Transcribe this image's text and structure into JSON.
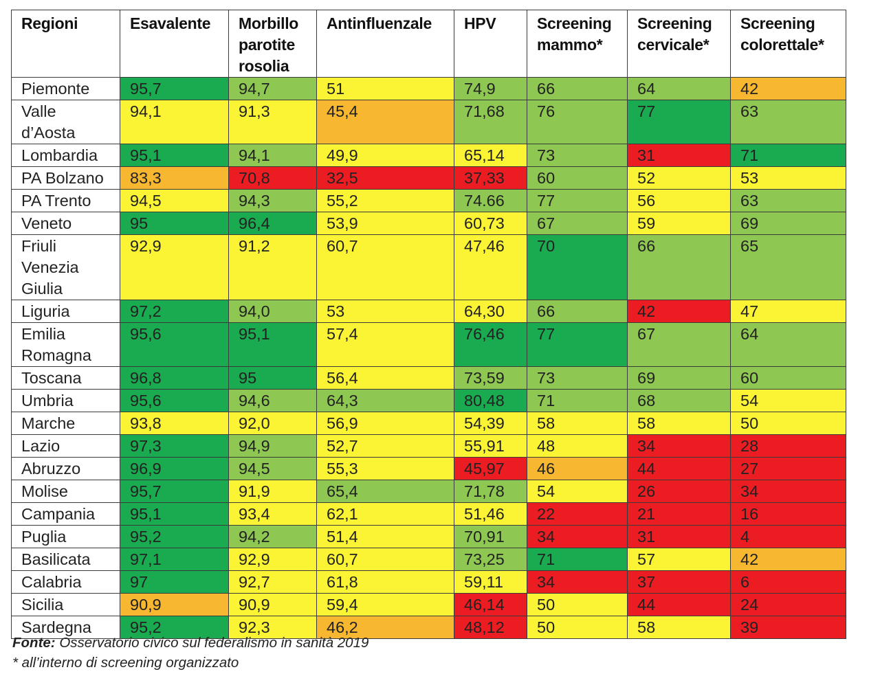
{
  "table": {
    "headers": [
      "Regioni",
      "Esavalente",
      "Morbillo parotite rosolia",
      "Antinfluenzale",
      "HPV",
      "Screening mammo*",
      "Screening cervicale*",
      "Screening colorettale*"
    ],
    "rows": [
      {
        "region": "Piemonte",
        "values": [
          "95,7",
          "94,7",
          "51",
          "74,9",
          "66",
          "64",
          "42"
        ],
        "colors": [
          "g",
          "l",
          "y",
          "l",
          "l",
          "l",
          "o"
        ]
      },
      {
        "region": "Valle d’Aosta",
        "values": [
          "94,1",
          "91,3",
          "45,4",
          "71,68",
          "76",
          "77",
          "63"
        ],
        "colors": [
          "y",
          "y",
          "o",
          "l",
          "l",
          "g",
          "l"
        ]
      },
      {
        "region": "Lombardia",
        "values": [
          "95,1",
          "94,1",
          "49,9",
          "65,14",
          "73",
          "31",
          "71"
        ],
        "colors": [
          "g",
          "l",
          "y",
          "y",
          "l",
          "r",
          "g"
        ]
      },
      {
        "region": "PA Bolzano",
        "values": [
          "83,3",
          "70,8",
          "32,5",
          "37,33",
          "60",
          "52",
          "53"
        ],
        "colors": [
          "o",
          "r",
          "r",
          "r",
          "l",
          "y",
          "y"
        ]
      },
      {
        "region": "PA Trento",
        "values": [
          "94,5",
          "94,3",
          "55,2",
          "74.66",
          "77",
          "56",
          "63"
        ],
        "colors": [
          "y",
          "l",
          "y",
          "l",
          "l",
          "y",
          "l"
        ]
      },
      {
        "region": "Veneto",
        "values": [
          "95",
          "96,4",
          "53,9",
          "60,73",
          "67",
          "59",
          "69"
        ],
        "colors": [
          "g",
          "g",
          "y",
          "y",
          "l",
          "y",
          "l"
        ]
      },
      {
        "region": "Friuli Venezia Giulia",
        "values": [
          "92,9",
          "91,2",
          "60,7",
          "47,46",
          "70",
          "66",
          "65"
        ],
        "colors": [
          "y",
          "y",
          "y",
          "y",
          "g",
          "l",
          "l"
        ]
      },
      {
        "region": "Liguria",
        "values": [
          "97,2",
          "94,0",
          "53",
          "64,30",
          "66",
          "42",
          "47"
        ],
        "colors": [
          "g",
          "l",
          "y",
          "y",
          "l",
          "r",
          "y"
        ]
      },
      {
        "region": "Emilia Romagna",
        "values": [
          "95,6",
          "95,1",
          "57,4",
          "76,46",
          "77",
          "67",
          "64"
        ],
        "colors": [
          "g",
          "g",
          "y",
          "g",
          "g",
          "l",
          "l"
        ]
      },
      {
        "region": "Toscana",
        "values": [
          "96,8",
          "95",
          "56,4",
          "73,59",
          "73",
          "69",
          "60"
        ],
        "colors": [
          "g",
          "g",
          "y",
          "l",
          "l",
          "l",
          "l"
        ]
      },
      {
        "region": "Umbria",
        "values": [
          "95,6",
          "94,6",
          "64,3",
          "80,48",
          "71",
          "68",
          "54"
        ],
        "colors": [
          "g",
          "l",
          "l",
          "g",
          "l",
          "l",
          "y"
        ]
      },
      {
        "region": "Marche",
        "values": [
          "93,8",
          "92,0",
          "56,9",
          "54,39",
          "58",
          "58",
          "50"
        ],
        "colors": [
          "y",
          "y",
          "y",
          "y",
          "y",
          "y",
          "y"
        ]
      },
      {
        "region": "Lazio",
        "values": [
          "97,3",
          "94,9",
          "52,7",
          "55,91",
          "48",
          "34",
          "28"
        ],
        "colors": [
          "g",
          "l",
          "y",
          "y",
          "y",
          "r",
          "r"
        ]
      },
      {
        "region": "Abruzzo",
        "values": [
          "96,9",
          "94,5",
          "55,3",
          "45,97",
          "46",
          "44",
          "27"
        ],
        "colors": [
          "g",
          "l",
          "y",
          "r",
          "o",
          "r",
          "r"
        ]
      },
      {
        "region": "Molise",
        "values": [
          "95,7",
          "91,9",
          "65,4",
          "71,78",
          "54",
          "26",
          "34"
        ],
        "colors": [
          "g",
          "y",
          "l",
          "l",
          "y",
          "r",
          "r"
        ]
      },
      {
        "region": "Campania",
        "values": [
          "95,1",
          "93,4",
          "62,1",
          "51,46",
          "22",
          "21",
          "16"
        ],
        "colors": [
          "g",
          "y",
          "y",
          "y",
          "r",
          "r",
          "r"
        ]
      },
      {
        "region": "Puglia",
        "values": [
          "95,2",
          "94,2",
          "51,4",
          "70,91",
          "34",
          "31",
          "4"
        ],
        "colors": [
          "g",
          "l",
          "y",
          "l",
          "r",
          "r",
          "r"
        ]
      },
      {
        "region": "Basilicata",
        "values": [
          "97,1",
          "92,9",
          "60,7",
          "73,25",
          "71",
          "57",
          "42"
        ],
        "colors": [
          "g",
          "y",
          "y",
          "l",
          "g",
          "y",
          "o"
        ]
      },
      {
        "region": "Calabria",
        "values": [
          "97",
          "92,7",
          "61,8",
          "59,11",
          "34",
          "37",
          "6"
        ],
        "colors": [
          "g",
          "y",
          "y",
          "y",
          "r",
          "r",
          "r"
        ]
      },
      {
        "region": "Sicilia",
        "values": [
          "90,9",
          "90,9",
          "59,4",
          "46,14",
          "50",
          "44",
          "24"
        ],
        "colors": [
          "o",
          "y",
          "y",
          "r",
          "y",
          "r",
          "r"
        ]
      },
      {
        "region": "Sardegna",
        "values": [
          "95,2",
          "92,3",
          "46,2",
          "48,12",
          "50",
          "58",
          "39"
        ],
        "colors": [
          "g",
          "y",
          "o",
          "r",
          "y",
          "y",
          "r"
        ]
      }
    ]
  },
  "colors": {
    "g": "#1aaa4f",
    "l": "#8ec752",
    "y": "#fbf434",
    "o": "#f7b731",
    "r": "#ec1c23"
  },
  "notes": {
    "source_label": "Fonte:",
    "source_text": " Osservatorio civico sul federalismo in sanità 2019",
    "footnote": "* all’interno di screening organizzato"
  }
}
